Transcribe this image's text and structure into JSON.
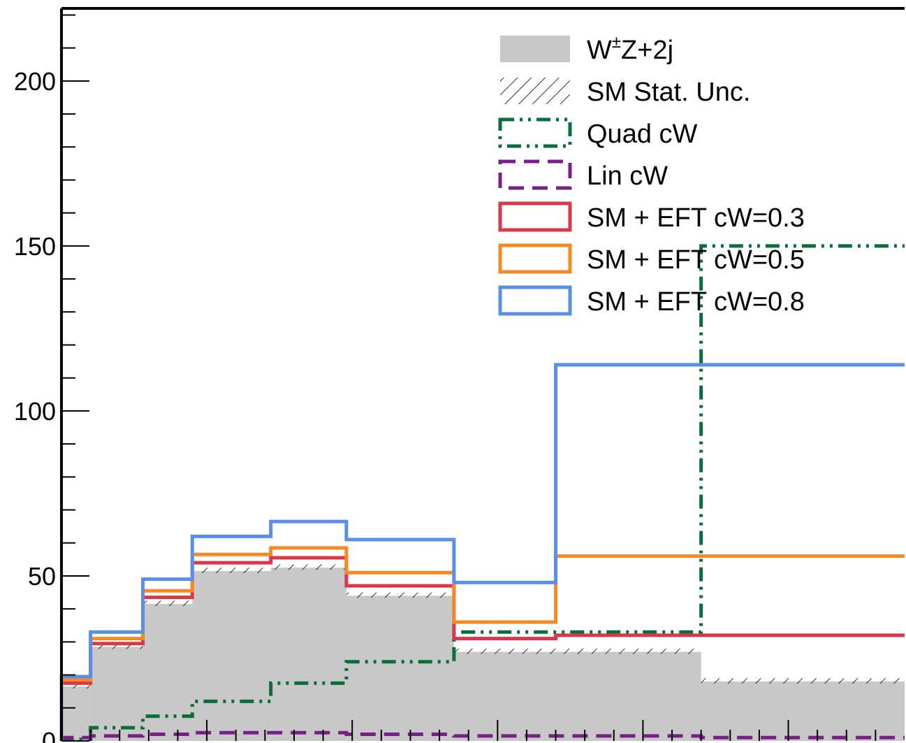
{
  "chart_data": {
    "type": "histogram",
    "x_bin_edges": [
      0,
      10,
      28,
      45,
      72,
      98,
      135,
      170,
      220,
      290
    ],
    "ylim": [
      0,
      222
    ],
    "y_ticks": [
      0,
      50,
      100,
      150,
      200
    ],
    "y_tick_labels": [
      "0",
      "50",
      "100",
      "150",
      "200"
    ],
    "series": [
      {
        "name": "W±Z+2j",
        "legend_main": "W",
        "legend_sup": "±",
        "legend_rest": "Z+2j",
        "style": "filled",
        "color": "#c8c8c8",
        "values": [
          16.5,
          28.5,
          41.5,
          51.5,
          52.5,
          44,
          27,
          27,
          18
        ]
      },
      {
        "name": "SM Stat. Unc.",
        "style": "hatched",
        "color": "#000000",
        "values": [
          17.5,
          29.5,
          42.5,
          52.5,
          53.5,
          45,
          28,
          28,
          19
        ]
      },
      {
        "name": "Quad cW",
        "style": "dash-dot",
        "color": "#0a6e3a",
        "values": [
          0.5,
          4,
          7.5,
          12,
          17.5,
          24,
          33,
          33,
          150
        ]
      },
      {
        "name": "Lin cW",
        "style": "dashed",
        "color": "#7a1f8a",
        "values": [
          1,
          1.5,
          2,
          2.5,
          2.5,
          2,
          1.5,
          1.5,
          1
        ]
      },
      {
        "name": "SM + EFT cW=0.3",
        "style": "solid",
        "color": "#d9384a",
        "values": [
          17.5,
          29.5,
          43.5,
          54,
          55.5,
          47,
          31,
          32,
          32
        ]
      },
      {
        "name": "SM + EFT cW=0.5",
        "style": "solid",
        "color": "#f58a22",
        "values": [
          18.5,
          31,
          45.5,
          56.5,
          58.5,
          51,
          36,
          56,
          56
        ]
      },
      {
        "name": "SM + EFT cW=0.8",
        "style": "solid",
        "color": "#5b8ee6",
        "values": [
          19.5,
          33,
          49,
          62,
          66.5,
          61,
          48,
          114,
          114
        ]
      }
    ],
    "legend_position": "top-right",
    "grid": false
  }
}
